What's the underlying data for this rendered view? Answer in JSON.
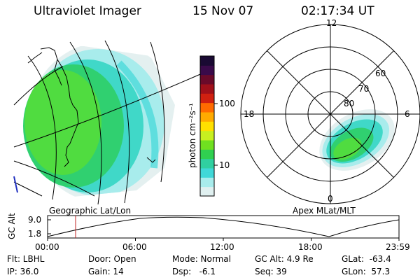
{
  "header": {
    "title": "Ultraviolet Imager",
    "date": "15 Nov 07",
    "time": "02:17:34 UT"
  },
  "geo_panel": {
    "label": "Geographic Lat/Lon"
  },
  "polar_panel": {
    "label": "Apex MLat/MLT",
    "mlt_labels": {
      "top": "12",
      "left": "18",
      "right": "6",
      "bottom": "0"
    },
    "lat_labels": [
      "60",
      "70",
      "80"
    ]
  },
  "colorbar": {
    "unit_label": "photon cm⁻²s⁻¹",
    "ticks": [
      "100",
      "10"
    ],
    "colors": [
      "#1a0a33",
      "#3a0a4a",
      "#6a0a2a",
      "#a0101a",
      "#d02010",
      "#ff6a00",
      "#ffaa00",
      "#ffe000",
      "#c8f020",
      "#70e020",
      "#30d050",
      "#30d0a0",
      "#40d8d8",
      "#a8ecec",
      "#e0f0f0"
    ]
  },
  "timeline": {
    "ylabel": "GC Alt",
    "yticks": [
      "9.0",
      "1.8"
    ],
    "xticks": [
      "00:00",
      "06:00",
      "12:00",
      "18:00",
      "23:59"
    ],
    "marker_time": "02:17"
  },
  "info": {
    "flt": "Flt: LBHL",
    "ip": "IP: 36.0",
    "door": "Door: Open",
    "gain": "Gain: 14",
    "mode": "Mode: Normal",
    "dsp": "Dsp:   -6.1",
    "gcalt": "GC Alt: 4.9 Re",
    "seq": "Seq: 39",
    "glat": "GLat:  -63.4",
    "glon": "GLon:  57.3"
  }
}
